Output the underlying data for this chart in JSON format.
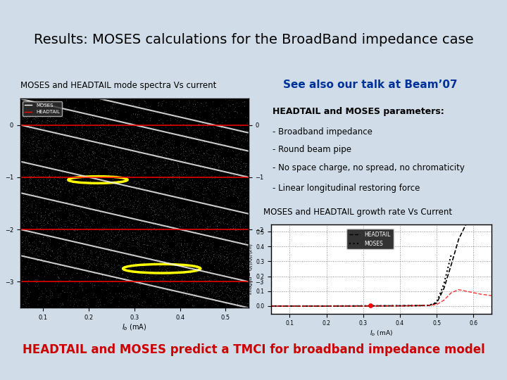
{
  "title": "Results: MOSES calculations for the BroadBand impedance case",
  "title_bg": "#b8d4e0",
  "slide_bg": "#d0dde8",
  "left_label": "MOSES and HEADTAIL mode spectra Vs current",
  "beam07_text": "See also our talk at Beam’07",
  "beam07_bg": "#ffff00",
  "beam07_border": "#ff8800",
  "params_title": "HEADTAIL and MOSES parameters:",
  "params_lines": [
    "- Broadband impedance",
    "- Round beam pipe",
    "- No space charge, no spread, no chromaticity",
    "- Linear longitudinal restoring force"
  ],
  "params_border": "#cc0000",
  "growth_label": "MOSES and HEADTAIL growth rate Vs Current",
  "bottom_text": "HEADTAIL and MOSES predict a TMCI for broadband impedance model",
  "bottom_bg": "#ffff00",
  "bottom_border": "#ff8800"
}
